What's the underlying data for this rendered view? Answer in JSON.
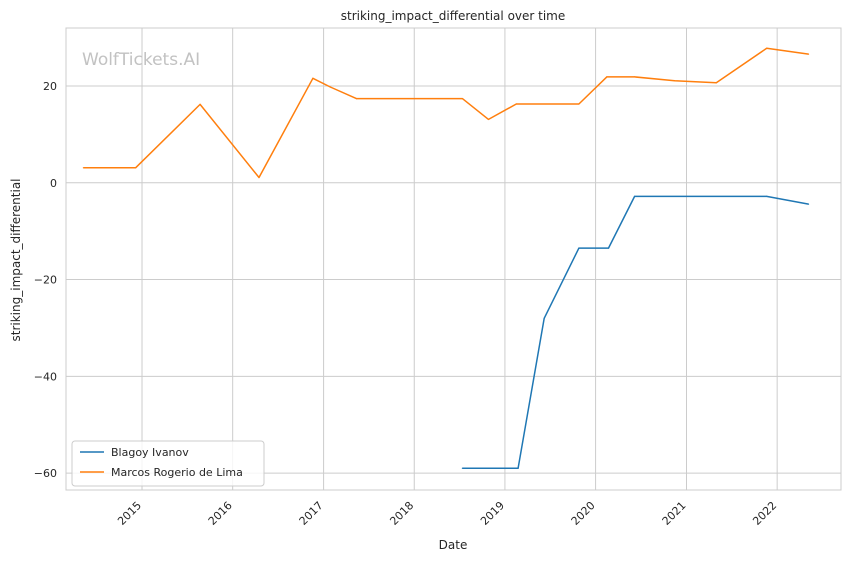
{
  "chart_data": {
    "type": "line",
    "title": "striking_impact_differential over time",
    "xlabel": "Date",
    "ylabel": "striking_impact_differential",
    "watermark": "WolfTickets.AI",
    "grid": true,
    "legend_position": "lower-left",
    "x_ticks": [
      "2015",
      "2016",
      "2017",
      "2018",
      "2019",
      "2020",
      "2021",
      "2022"
    ],
    "y_ticks": [
      20,
      0,
      -20,
      -40,
      -60
    ],
    "xlim": [
      "2014-03-01",
      "2022-09-15"
    ],
    "ylim": [
      -63.5,
      32
    ],
    "series": [
      {
        "name": "Blagoy Ivanov",
        "color": "#1f77b4",
        "x": [
          "2018-07-14",
          "2019-02-23",
          "2019-06-08",
          "2019-10-26",
          "2020-02-22",
          "2020-06-06",
          "2021-11-20",
          "2022-05-07"
        ],
        "y": [
          -59,
          -59,
          -28,
          -13.5,
          -13.5,
          -2.8,
          -2.8,
          -4.4
        ]
      },
      {
        "name": "Marcos Rogerio de Lima",
        "color": "#ff7f0e",
        "x": [
          "2014-05-10",
          "2014-12-06",
          "2015-08-23",
          "2016-04-16",
          "2016-11-19",
          "2017-01-28",
          "2017-05-13",
          "2018-07-14",
          "2018-10-27",
          "2019-02-16",
          "2019-10-26",
          "2020-02-15",
          "2020-06-06",
          "2020-11-14",
          "2021-05-01",
          "2021-11-20",
          "2022-05-07"
        ],
        "y": [
          3.1,
          3.1,
          16.2,
          1.1,
          21.6,
          19.8,
          17.4,
          17.4,
          13.1,
          16.3,
          16.3,
          21.9,
          21.9,
          21.1,
          20.7,
          27.8,
          26.6
        ]
      }
    ]
  }
}
